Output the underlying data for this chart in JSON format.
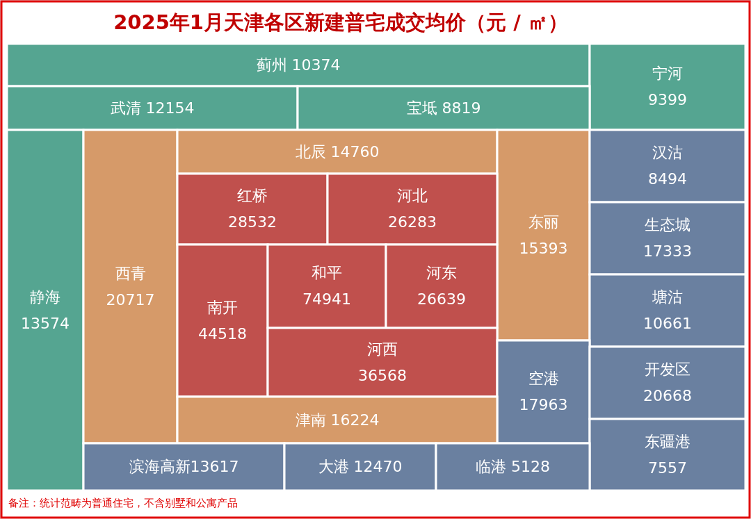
{
  "chart_data": {
    "type": "other",
    "title": "2025年1月天津各区新建普宅成交均价（元 / ㎡）",
    "categories": [
      "蓟州",
      "宁河",
      "武清",
      "宝坻",
      "静海",
      "西青",
      "北辰",
      "东丽",
      "汉沽",
      "红桥",
      "河北",
      "生态城",
      "南开",
      "和平",
      "河东",
      "塘沽",
      "河西",
      "空港",
      "开发区",
      "津南",
      "东疆港",
      "滨海高新",
      "大港",
      "临港"
    ],
    "values": [
      10374,
      9399,
      12154,
      8819,
      13574,
      20717,
      14760,
      15393,
      8494,
      28532,
      26283,
      17333,
      44518,
      74941,
      26639,
      10661,
      36568,
      17963,
      20668,
      16224,
      7557,
      13617,
      12470,
      5128
    ],
    "colors": [
      "#55a591",
      "#55a591",
      "#55a591",
      "#55a591",
      "#55a591",
      "#d69a69",
      "#d69a69",
      "#d69a69",
      "#6a80a0",
      "#c0504d",
      "#c0504d",
      "#6a80a0",
      "#c0504d",
      "#c0504d",
      "#c0504d",
      "#6a80a0",
      "#c0504d",
      "#6a80a0",
      "#6a80a0",
      "#d69a69",
      "#6a80a0",
      "#6a80a0",
      "#6a80a0",
      "#6a80a0"
    ],
    "data_labels": true,
    "annotations": [
      "备注：统计范畴为普通住宅，不含别墅和公寓产品"
    ]
  }
}
